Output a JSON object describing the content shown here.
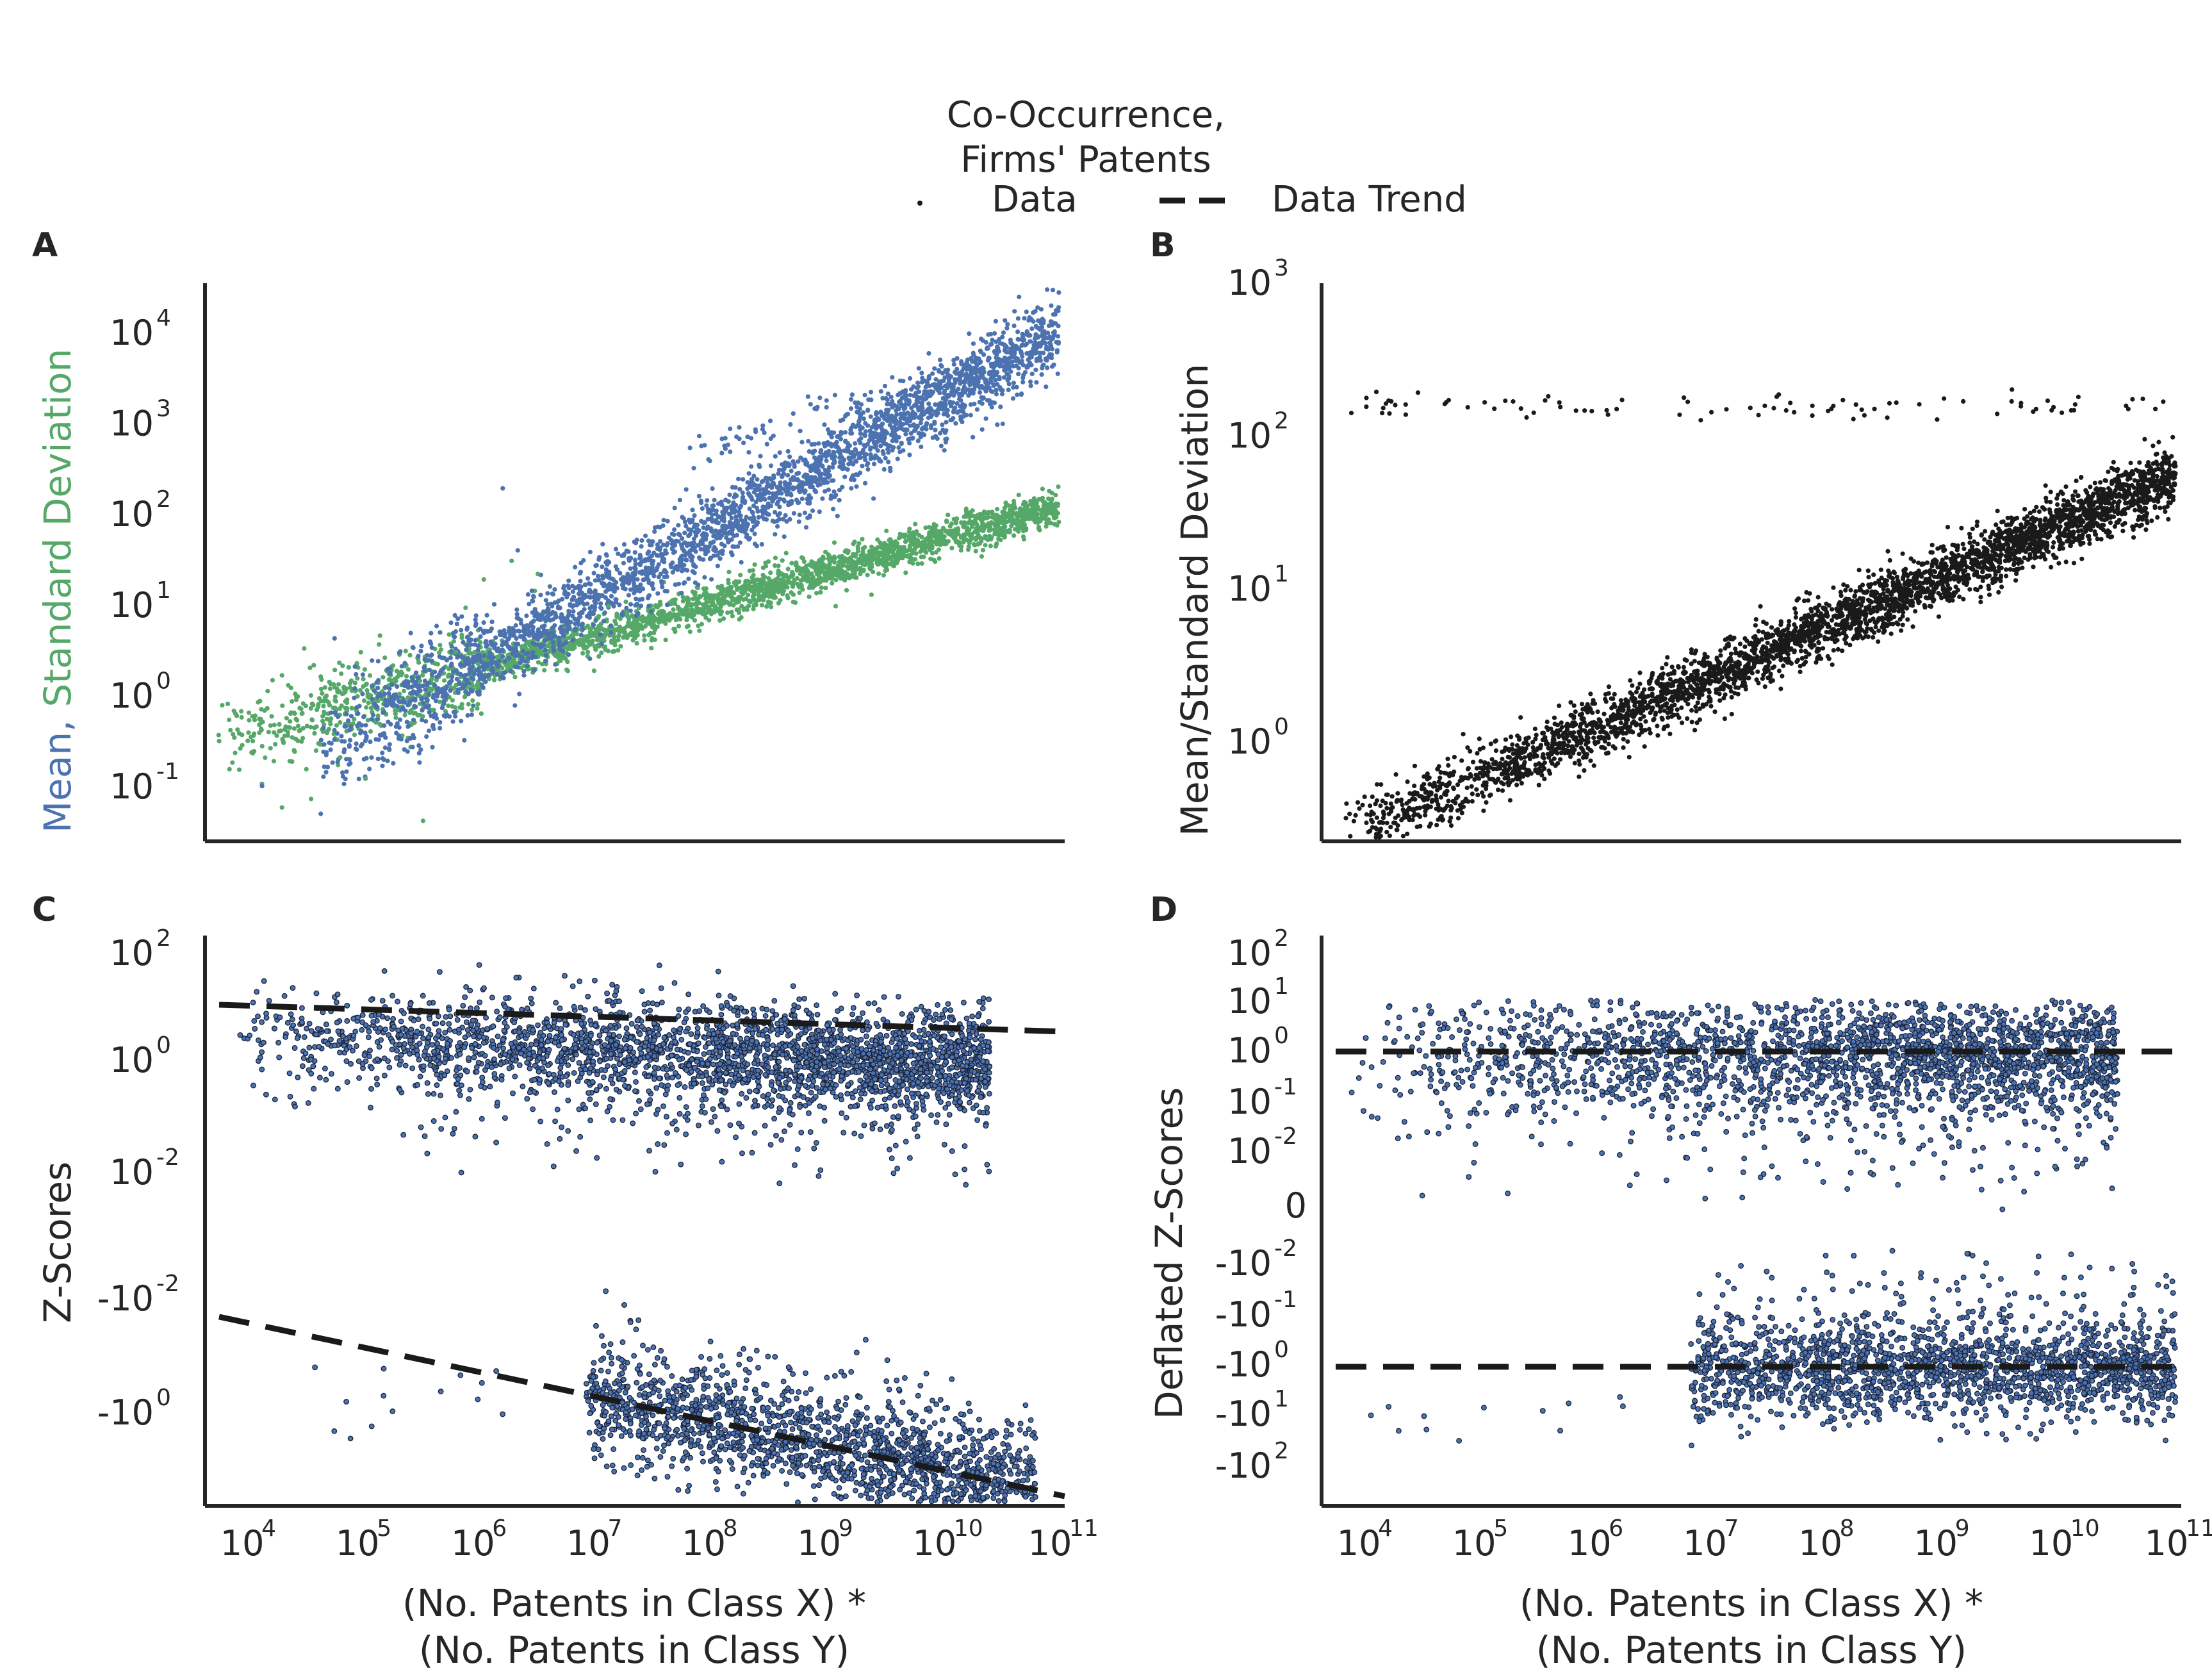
{
  "figure": {
    "legend": {
      "title_line1": "Co-Occurrence,",
      "title_line2": "Firms' Patents",
      "items": [
        {
          "label": "Data",
          "marker": "dot"
        },
        {
          "label": "Data Trend",
          "marker": "dashed-line"
        }
      ]
    },
    "shared_xlabel_line1": "(No. Patents in Class X) *",
    "shared_xlabel_line2": "(No. Patents in Class Y)"
  },
  "colors": {
    "mean": "#4c72b0",
    "std": "#55a868",
    "black": "#1a1a1a",
    "axis": "#262626"
  },
  "chart_data": [
    {
      "panel": "A",
      "type": "scatter",
      "ylabel_part1": "Mean,",
      "ylabel_part2": "Standard Deviation",
      "xscale": "log",
      "yscale": "log",
      "xlim_log10": [
        3.6,
        11.05
      ],
      "ylim_log10": [
        -1.6,
        4.55
      ],
      "yticks": [
        {
          "exp": -1,
          "text": "-1"
        },
        {
          "exp": 0,
          "text": "0"
        },
        {
          "exp": 1,
          "text": "1"
        },
        {
          "exp": 2,
          "text": "2"
        },
        {
          "exp": 3,
          "text": "3"
        },
        {
          "exp": 4,
          "text": "4"
        }
      ],
      "xticks_visible": false,
      "series": [
        {
          "name": "Mean",
          "color": "mean",
          "trend_main": {
            "x": [
              5.0,
              11.0
            ],
            "y": [
              -0.35,
              4.0
            ]
          },
          "spread": 0.22,
          "outlier_band": {
            "x": [
              7.8,
              9.4
            ],
            "y_offset": 0.45
          }
        },
        {
          "name": "Standard Deviation",
          "color": "std",
          "trend_main": {
            "x": [
              3.7,
              11.0
            ],
            "y": [
              -0.5,
              2.1
            ]
          },
          "spread": 0.09
        }
      ]
    },
    {
      "panel": "B",
      "type": "scatter",
      "ylabel": "Mean/Standard Deviation",
      "xscale": "log",
      "yscale": "log",
      "xlim_log10": [
        3.6,
        11.05
      ],
      "ylim_log10": [
        -0.65,
        3.0
      ],
      "yticks": [
        {
          "exp": 0,
          "text": "0"
        },
        {
          "exp": 1,
          "text": "1"
        },
        {
          "exp": 2,
          "text": "2"
        },
        {
          "exp": 3,
          "text": "3"
        }
      ],
      "xticks_visible": false,
      "series": [
        {
          "name": "Mean/Std",
          "color": "black",
          "trend_main": {
            "x": [
              3.7,
              11.0
            ],
            "y": [
              -0.65,
              1.75
            ]
          },
          "spread": 0.1,
          "ceiling_y": 2.2
        }
      ]
    },
    {
      "panel": "C",
      "type": "scatter",
      "ylabel": "Z-Scores",
      "xscale": "log",
      "yscale": "symlog",
      "xlim_log10": [
        3.6,
        11.05
      ],
      "yticks": [
        {
          "exp": 2,
          "text": "2",
          "sign": ""
        },
        {
          "exp": 0,
          "text": "0",
          "sign": ""
        },
        {
          "exp": -2,
          "text": "-2",
          "sign": ""
        },
        {
          "exp": -2,
          "text": "-2",
          "sign": "-"
        },
        {
          "exp": 0,
          "text": "0",
          "sign": "-"
        }
      ],
      "xticks": [
        {
          "exp": 4,
          "text": "4"
        },
        {
          "exp": 5,
          "text": "5"
        },
        {
          "exp": 6,
          "text": "6"
        },
        {
          "exp": 7,
          "text": "7"
        },
        {
          "exp": 8,
          "text": "8"
        },
        {
          "exp": 9,
          "text": "9"
        },
        {
          "exp": 10,
          "text": "10"
        },
        {
          "exp": 11,
          "text": "11"
        }
      ],
      "trend_positive": {
        "x": [
          3.7,
          11.0
        ],
        "y_log10": [
          1.0,
          0.35
        ]
      },
      "trend_negative": {
        "x": [
          3.7,
          11.0
        ],
        "y_log10": [
          -1.8,
          2.2
        ]
      }
    },
    {
      "panel": "D",
      "type": "scatter",
      "ylabel": "Deflated Z-Scores",
      "xscale": "log",
      "yscale": "symlog",
      "xlim_log10": [
        3.6,
        11.05
      ],
      "yticks": [
        {
          "exp": 2,
          "text": "2",
          "sign": ""
        },
        {
          "exp": 1,
          "text": "1",
          "sign": ""
        },
        {
          "exp": 0,
          "text": "0",
          "sign": ""
        },
        {
          "exp": -1,
          "text": "-1",
          "sign": ""
        },
        {
          "exp": -2,
          "text": "-2",
          "sign": ""
        },
        {
          "zero": true,
          "text": "0"
        },
        {
          "exp": -2,
          "text": "-2",
          "sign": "-"
        },
        {
          "exp": -1,
          "text": "-1",
          "sign": "-"
        },
        {
          "exp": 0,
          "text": "0",
          "sign": "-"
        },
        {
          "exp": 1,
          "text": "1",
          "sign": "-"
        },
        {
          "exp": 2,
          "text": "2",
          "sign": "-"
        }
      ],
      "xticks": [
        {
          "exp": 4,
          "text": "4"
        },
        {
          "exp": 5,
          "text": "5"
        },
        {
          "exp": 6,
          "text": "6"
        },
        {
          "exp": 7,
          "text": "7"
        },
        {
          "exp": 8,
          "text": "8"
        },
        {
          "exp": 9,
          "text": "9"
        },
        {
          "exp": 10,
          "text": "10"
        },
        {
          "exp": 11,
          "text": "11"
        }
      ],
      "trend_positive": {
        "x": [
          3.7,
          11.0
        ],
        "y_level": "10^0"
      },
      "trend_negative": {
        "x": [
          3.7,
          11.0
        ],
        "y_level": "-10^0"
      }
    }
  ]
}
